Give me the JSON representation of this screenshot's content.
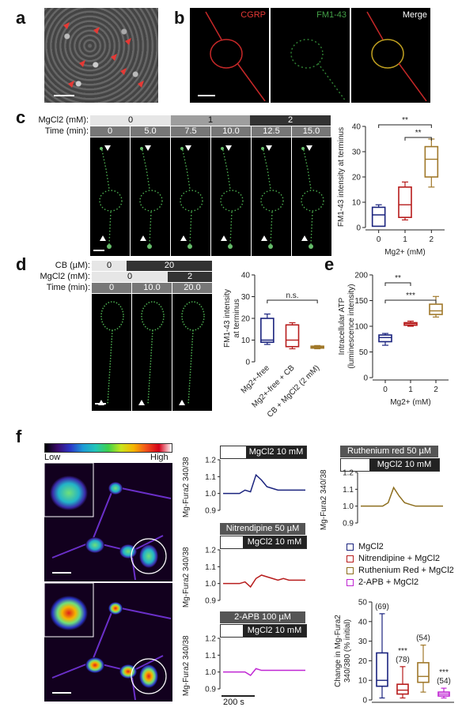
{
  "panels": {
    "a": "a",
    "b": "b",
    "c": "c",
    "d": "d",
    "e": "e",
    "f": "f"
  },
  "panel_b": {
    "ch1": "CGRP",
    "ch2": "FM1-43",
    "ch3": "Merge"
  },
  "panel_c": {
    "row1_label": "MgCl2 (mM):",
    "row1_values": [
      "0",
      "1",
      "2"
    ],
    "row2_label": "Time (min):",
    "row2_values": [
      "0",
      "5.0",
      "7.5",
      "10.0",
      "12.5",
      "15.0"
    ]
  },
  "panel_d": {
    "row1_label": "CB (µM):",
    "row1_values": [
      "0",
      "20"
    ],
    "row2_label": "MgCl2 (mM):",
    "row2_values": [
      "0",
      "2"
    ],
    "row3_label": "Time (min):",
    "row3_values": [
      "0",
      "10.0",
      "20.0"
    ]
  },
  "panel_f": {
    "colorbar_low": "Low",
    "colorbar_high": "High",
    "trace1_header": "MgCl2 10 mM",
    "trace2_header_top": "Nitrendipine 50 µM",
    "trace2_header": "MgCl2 10 mM",
    "trace3_header_top": "2-APB 100 µM",
    "trace3_header": "MgCl2 10 mM",
    "trace4_header_top": "Ruthenium red 50 µM",
    "trace4_header": "MgCl2 10 mM",
    "trace_ylabel": "Mg-Fura2 340/380",
    "time_scale": "200 s",
    "legend": [
      "MgCl2",
      "Nitrendipine + MgCl2",
      "Ruthenium Red + MgCl2",
      "2-APB + MgCl2"
    ],
    "legend_colors": [
      "#1a237e",
      "#b71c1c",
      "#8d6e1e",
      "#c026d3"
    ]
  },
  "chart_data": [
    {
      "id": "c",
      "type": "box",
      "ylabel": "FM1-43 intensity at terminus",
      "xlabel": "Mg2+ (mM)",
      "categories": [
        "0",
        "1",
        "2"
      ],
      "colors": [
        "#1a237e",
        "#b71c1c",
        "#a0782a"
      ],
      "boxes": [
        {
          "min": 0.5,
          "q1": 0.5,
          "median": 5,
          "q3": 8,
          "max": 9
        },
        {
          "min": 3,
          "q1": 4,
          "median": 9,
          "q3": 16,
          "max": 18
        },
        {
          "min": 16,
          "q1": 20,
          "median": 27,
          "q3": 32,
          "max": 35
        }
      ],
      "ylim": [
        0,
        40
      ],
      "yticks": [
        0,
        10,
        20,
        30,
        40
      ],
      "annotations": [
        {
          "from": 0,
          "to": 2,
          "text": "**"
        },
        {
          "from": 1,
          "to": 2,
          "text": "**"
        }
      ]
    },
    {
      "id": "d",
      "type": "box",
      "ylabel": "FM1-43 intensity at terminus",
      "categories": [
        "Mg2+-free",
        "Mg2+-free + CB",
        "CB + MgCl2 (2 mM)"
      ],
      "colors": [
        "#1a237e",
        "#b71c1c",
        "#a0782a"
      ],
      "boxes": [
        {
          "min": 8,
          "q1": 9,
          "median": 10,
          "q3": 20,
          "max": 22
        },
        {
          "min": 6,
          "q1": 7,
          "median": 10,
          "q3": 17,
          "max": 18
        },
        {
          "min": 6,
          "q1": 6.3,
          "median": 6.8,
          "q3": 7.2,
          "max": 7.5
        }
      ],
      "ylim": [
        0,
        40
      ],
      "yticks": [
        0,
        10,
        20,
        30,
        40
      ],
      "annotations": [
        {
          "from": 0,
          "to": 2,
          "text": "n.s."
        }
      ]
    },
    {
      "id": "e",
      "type": "box",
      "ylabel": "Intracellular ATP (luminescence intensity)",
      "xlabel": "Mg2+ (mM)",
      "categories": [
        "0",
        "1",
        "2"
      ],
      "colors": [
        "#1a237e",
        "#b71c1c",
        "#a0782a"
      ],
      "boxes": [
        {
          "min": 63,
          "q1": 70,
          "median": 78,
          "q3": 83,
          "max": 86
        },
        {
          "min": 100,
          "q1": 102,
          "median": 105,
          "q3": 107,
          "max": 110
        },
        {
          "min": 118,
          "q1": 123,
          "median": 130,
          "q3": 143,
          "max": 158
        }
      ],
      "ylim": [
        0,
        200
      ],
      "yticks": [
        0,
        50,
        100,
        150,
        200
      ],
      "annotations": [
        {
          "from": 0,
          "to": 1,
          "text": "**"
        },
        {
          "from": 0,
          "to": 2,
          "text": "***"
        }
      ]
    },
    {
      "id": "f-box",
      "type": "box",
      "ylabel": "Change in Mg-Fura2 340/380 (% initial)",
      "categories": [
        "MgCl2",
        "Nitrendipine + MgCl2",
        "Ruthenium Red + MgCl2",
        "2-APB + MgCl2"
      ],
      "colors": [
        "#1a237e",
        "#b71c1c",
        "#a0782a",
        "#c026d3"
      ],
      "boxes": [
        {
          "min": 1,
          "q1": 7,
          "median": 10,
          "q3": 24,
          "max": 44
        },
        {
          "min": 1,
          "q1": 3,
          "median": 5,
          "q3": 8,
          "max": 17
        },
        {
          "min": 4,
          "q1": 9,
          "median": 12,
          "q3": 19,
          "max": 28
        },
        {
          "min": 1,
          "q1": 2,
          "median": 3,
          "q3": 4,
          "max": 6
        }
      ],
      "labels": [
        "(69)",
        "***\n(78)",
        "(54)",
        "***\n(54)"
      ],
      "ylim": [
        0,
        50
      ],
      "yticks": [
        0,
        10,
        20,
        30,
        40,
        50
      ]
    },
    {
      "id": "f-traces",
      "type": "line",
      "ylim": [
        0.9,
        1.2
      ],
      "yticks": [
        0.9,
        1.0,
        1.1,
        1.2
      ],
      "series": [
        {
          "name": "MgCl2",
          "color": "#1a237e",
          "values": [
            1.0,
            1.0,
            1.0,
            1.0,
            1.02,
            1.01,
            1.11,
            1.08,
            1.04,
            1.03,
            1.02,
            1.02,
            1.02,
            1.02,
            1.02,
            1.02
          ]
        },
        {
          "name": "Nitrendipine + MgCl2",
          "color": "#b71c1c",
          "values": [
            1.0,
            1.0,
            1.0,
            1.0,
            1.01,
            0.98,
            1.03,
            1.05,
            1.04,
            1.03,
            1.02,
            1.03,
            1.02,
            1.02,
            1.02,
            1.02
          ]
        },
        {
          "name": "2-APB + MgCl2",
          "color": "#c026d3",
          "values": [
            1.0,
            1.0,
            1.0,
            1.0,
            1.0,
            0.98,
            1.02,
            1.01,
            1.01,
            1.01,
            1.01,
            1.01,
            1.01,
            1.01,
            1.01,
            1.01
          ]
        },
        {
          "name": "Ruthenium Red + MgCl2",
          "color": "#8d6e1e",
          "values": [
            1.0,
            1.0,
            1.0,
            1.0,
            1.0,
            1.02,
            1.11,
            1.06,
            1.02,
            1.01,
            1.0,
            1.0,
            1.0,
            1.0,
            1.0,
            1.0
          ]
        }
      ]
    }
  ]
}
